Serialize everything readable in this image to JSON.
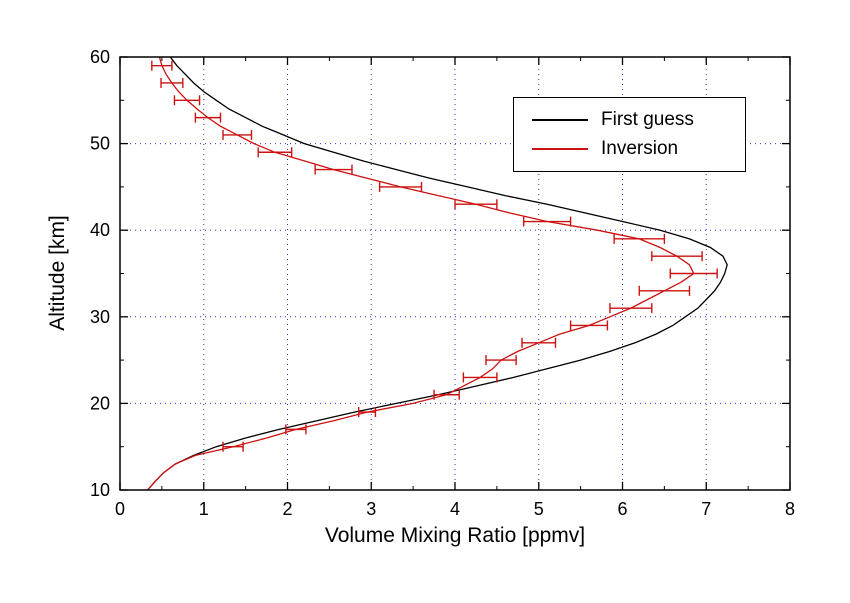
{
  "chart_data": {
    "type": "line",
    "title": "",
    "xlabel": "Volume Mixing Ratio [ppmv]",
    "ylabel": "Altitude [km]",
    "xlim": [
      0,
      8
    ],
    "ylim": [
      10,
      60
    ],
    "xticks": [
      0,
      1,
      2,
      3,
      4,
      5,
      6,
      7,
      8
    ],
    "yticks": [
      10,
      20,
      30,
      40,
      50,
      60
    ],
    "x_minor_step": 0.5,
    "y_minor_step": 5,
    "background_color": "#ffffff",
    "axis_color": "#000000",
    "grid": {
      "show": true,
      "style": "dotted",
      "color": "#3333cc"
    },
    "legend": {
      "position": "upper-right",
      "entries": [
        {
          "label": "First guess",
          "color": "#000000"
        },
        {
          "label": "Inversion",
          "color": "#cc1111"
        }
      ]
    },
    "series": [
      {
        "name": "First guess",
        "color": "#000000",
        "points": [
          [
            0.33,
            10
          ],
          [
            0.42,
            11
          ],
          [
            0.52,
            12
          ],
          [
            0.66,
            13
          ],
          [
            0.88,
            14
          ],
          [
            1.15,
            15
          ],
          [
            1.5,
            16
          ],
          [
            1.9,
            17
          ],
          [
            2.35,
            18
          ],
          [
            2.8,
            19
          ],
          [
            3.3,
            20
          ],
          [
            3.8,
            21
          ],
          [
            4.25,
            22
          ],
          [
            4.7,
            23
          ],
          [
            5.1,
            24
          ],
          [
            5.5,
            25
          ],
          [
            5.85,
            26
          ],
          [
            6.15,
            27
          ],
          [
            6.4,
            28
          ],
          [
            6.6,
            29
          ],
          [
            6.75,
            30
          ],
          [
            6.9,
            31
          ],
          [
            7.0,
            32
          ],
          [
            7.1,
            33
          ],
          [
            7.17,
            34
          ],
          [
            7.22,
            35
          ],
          [
            7.25,
            36
          ],
          [
            7.2,
            37
          ],
          [
            7.05,
            38
          ],
          [
            6.8,
            39
          ],
          [
            6.45,
            40
          ],
          [
            6.0,
            41
          ],
          [
            5.55,
            42
          ],
          [
            5.1,
            43
          ],
          [
            4.6,
            44
          ],
          [
            4.15,
            45
          ],
          [
            3.7,
            46
          ],
          [
            3.3,
            47
          ],
          [
            2.9,
            48
          ],
          [
            2.55,
            49
          ],
          [
            2.2,
            50
          ],
          [
            1.95,
            51
          ],
          [
            1.7,
            52
          ],
          [
            1.5,
            53
          ],
          [
            1.3,
            54
          ],
          [
            1.15,
            55
          ],
          [
            1.0,
            56
          ],
          [
            0.88,
            57
          ],
          [
            0.78,
            58
          ],
          [
            0.68,
            59
          ],
          [
            0.6,
            60
          ]
        ]
      },
      {
        "name": "Inversion",
        "color": "#cc1111",
        "points": [
          [
            0.33,
            10
          ],
          [
            0.42,
            11
          ],
          [
            0.52,
            12
          ],
          [
            0.66,
            13
          ],
          [
            0.9,
            14
          ],
          [
            1.35,
            15
          ],
          [
            1.75,
            16
          ],
          [
            2.1,
            17
          ],
          [
            2.55,
            18
          ],
          [
            2.95,
            19
          ],
          [
            3.5,
            20
          ],
          [
            3.9,
            21
          ],
          [
            4.1,
            22
          ],
          [
            4.3,
            23
          ],
          [
            4.45,
            24
          ],
          [
            4.55,
            25
          ],
          [
            4.75,
            26
          ],
          [
            5.0,
            27
          ],
          [
            5.25,
            28
          ],
          [
            5.6,
            29
          ],
          [
            5.85,
            30
          ],
          [
            6.1,
            31
          ],
          [
            6.3,
            32
          ],
          [
            6.5,
            33
          ],
          [
            6.7,
            34
          ],
          [
            6.85,
            35
          ],
          [
            6.8,
            36
          ],
          [
            6.65,
            37
          ],
          [
            6.45,
            38
          ],
          [
            6.2,
            39
          ],
          [
            5.7,
            40
          ],
          [
            5.1,
            41
          ],
          [
            4.65,
            42
          ],
          [
            4.25,
            43
          ],
          [
            3.8,
            44
          ],
          [
            3.35,
            45
          ],
          [
            2.95,
            46
          ],
          [
            2.55,
            47
          ],
          [
            2.2,
            48
          ],
          [
            1.85,
            49
          ],
          [
            1.6,
            50
          ],
          [
            1.4,
            51
          ],
          [
            1.2,
            52
          ],
          [
            1.05,
            53
          ],
          [
            0.92,
            54
          ],
          [
            0.8,
            55
          ],
          [
            0.7,
            56
          ],
          [
            0.62,
            57
          ],
          [
            0.55,
            58
          ],
          [
            0.5,
            59
          ],
          [
            0.47,
            60
          ]
        ],
        "error_bars": [
          {
            "alt": 15,
            "vmr": 1.35,
            "err": 0.12
          },
          {
            "alt": 17,
            "vmr": 2.1,
            "err": 0.12
          },
          {
            "alt": 19,
            "vmr": 2.95,
            "err": 0.1
          },
          {
            "alt": 21,
            "vmr": 3.9,
            "err": 0.15
          },
          {
            "alt": 23,
            "vmr": 4.3,
            "err": 0.2
          },
          {
            "alt": 25,
            "vmr": 4.55,
            "err": 0.18
          },
          {
            "alt": 27,
            "vmr": 5.0,
            "err": 0.2
          },
          {
            "alt": 29,
            "vmr": 5.6,
            "err": 0.22
          },
          {
            "alt": 31,
            "vmr": 6.1,
            "err": 0.25
          },
          {
            "alt": 33,
            "vmr": 6.5,
            "err": 0.3
          },
          {
            "alt": 35,
            "vmr": 6.85,
            "err": 0.28
          },
          {
            "alt": 37,
            "vmr": 6.65,
            "err": 0.3
          },
          {
            "alt": 39,
            "vmr": 6.2,
            "err": 0.3
          },
          {
            "alt": 41,
            "vmr": 5.1,
            "err": 0.28
          },
          {
            "alt": 43,
            "vmr": 4.25,
            "err": 0.25
          },
          {
            "alt": 45,
            "vmr": 3.35,
            "err": 0.25
          },
          {
            "alt": 47,
            "vmr": 2.55,
            "err": 0.22
          },
          {
            "alt": 49,
            "vmr": 1.85,
            "err": 0.2
          },
          {
            "alt": 51,
            "vmr": 1.4,
            "err": 0.17
          },
          {
            "alt": 53,
            "vmr": 1.05,
            "err": 0.15
          },
          {
            "alt": 55,
            "vmr": 0.8,
            "err": 0.15
          },
          {
            "alt": 57,
            "vmr": 0.62,
            "err": 0.13
          },
          {
            "alt": 59,
            "vmr": 0.5,
            "err": 0.12
          }
        ]
      }
    ]
  }
}
